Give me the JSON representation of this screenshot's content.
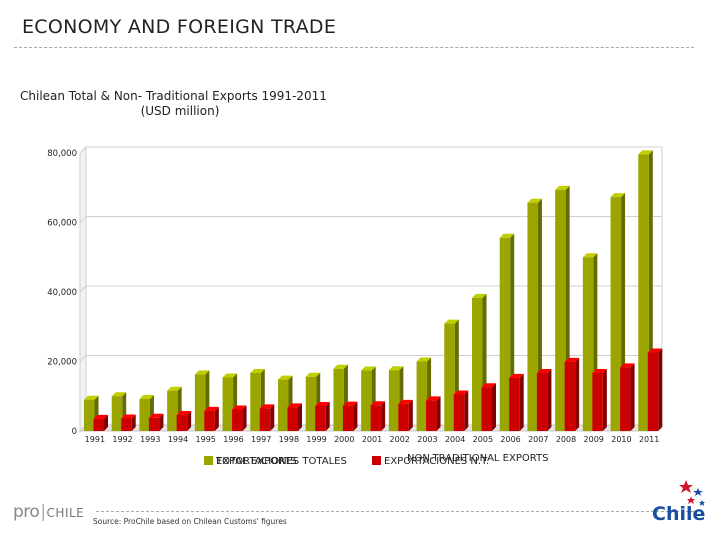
{
  "header": {
    "title": "ECONOMY AND FOREIGN TRADE"
  },
  "chart_data": {
    "type": "bar",
    "title": "Chilean Total & Non- Traditional Exports 1991-2011",
    "subtitle": "(USD million)",
    "categories": [
      "1991",
      "1992",
      "1993",
      "1994",
      "1995",
      "1996",
      "1997",
      "1998",
      "1999",
      "2000",
      "2001",
      "2002",
      "2003",
      "2004",
      "2005",
      "2006",
      "2007",
      "2008",
      "2009",
      "2010",
      "2011"
    ],
    "series": [
      {
        "name": "EXPORTACIONES TOTALES",
        "legend_overlay": "TOTAL EXPORTS",
        "color": "#9aa500",
        "values": [
          9000,
          10000,
          9200,
          11600,
          16300,
          15400,
          16700,
          14800,
          15600,
          17900,
          17400,
          17500,
          20000,
          30900,
          38300,
          55600,
          65700,
          69400,
          50000,
          67300,
          79600
        ]
      },
      {
        "name": "EXPORTACIONES N.T.",
        "legend_overlay": "NON-TRADITIONAL EXPORTS",
        "color": "#cc0000",
        "values": [
          3500,
          3600,
          3800,
          4600,
          5800,
          6200,
          6500,
          6800,
          7200,
          7300,
          7400,
          7800,
          8800,
          10500,
          12600,
          15300,
          16700,
          19900,
          16700,
          18300,
          22600
        ]
      }
    ],
    "yticks": [
      "0",
      "20,000",
      "40,000",
      "60,000",
      "80,000"
    ],
    "ylim": [
      0,
      80000
    ],
    "xlabel": "",
    "ylabel": "",
    "grid": true,
    "legend_position": "bottom"
  },
  "footer": {
    "source": "Source: ProChile based on Chilean Customs' figures",
    "logo_left_pro": "pro",
    "logo_left_sep": "|",
    "logo_left_chile": "CHILE",
    "logo_right": "Chile"
  }
}
